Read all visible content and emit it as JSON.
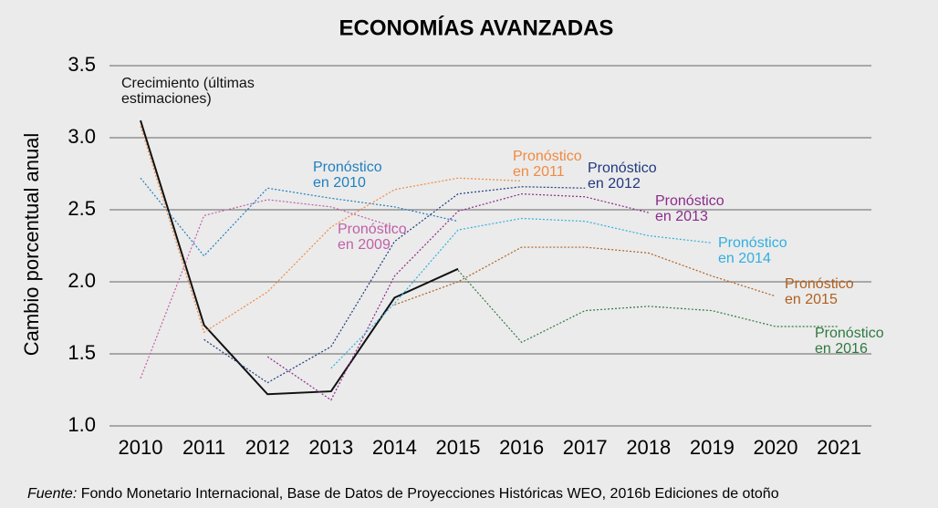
{
  "chart_data": {
    "type": "line",
    "title": "ECONOMÍAS AVANZADAS",
    "y_label": "Cambio porcentual anual",
    "source_label": "Fuente:",
    "source_text": "Fondo Monetario Internacional, Base de Datos de Proyecciones Históricas WEO, 2016b Ediciones de otoño",
    "categories": [
      "2010",
      "2011",
      "2012",
      "2013",
      "2014",
      "2015",
      "2016",
      "2017",
      "2018",
      "2019",
      "2020",
      "2021"
    ],
    "ylim": [
      1.0,
      3.5
    ],
    "yticks": [
      {
        "value": 1,
        "label": "1.0"
      },
      1.5,
      {
        "value": 2,
        "label": "2.0"
      },
      2.5,
      {
        "value": 3,
        "label": "3.0"
      },
      3.5
    ],
    "grid": true,
    "series": [
      {
        "name": "Crecimiento (últimas estimaciones)",
        "color": "#111111",
        "style": "solid",
        "values": [
          3.12,
          1.7,
          1.22,
          1.24,
          1.89,
          2.09,
          null,
          null,
          null,
          null,
          null,
          null
        ]
      },
      {
        "name": "Pronóstico en 2009",
        "color": "#c060a8",
        "style": "dotted",
        "values": [
          1.33,
          2.46,
          2.57,
          2.52,
          2.38,
          null,
          null,
          null,
          null,
          null,
          null,
          null
        ]
      },
      {
        "name": "Pronóstico en 2010",
        "color": "#1f7fc0",
        "style": "dotted",
        "values": [
          2.72,
          2.18,
          2.65,
          2.58,
          2.52,
          2.42,
          null,
          null,
          null,
          null,
          null,
          null
        ]
      },
      {
        "name": "Pronóstico en 2011",
        "color": "#f08a40",
        "style": "dotted",
        "values": [
          3.08,
          1.65,
          1.93,
          2.38,
          2.64,
          2.72,
          2.7,
          null,
          null,
          null,
          null,
          null
        ]
      },
      {
        "name": "Pronóstico en 2012",
        "color": "#1f3a80",
        "style": "dotted",
        "values": [
          null,
          1.6,
          1.3,
          1.55,
          2.28,
          2.61,
          2.66,
          2.65,
          null,
          null,
          null,
          null
        ]
      },
      {
        "name": "Pronóstico en 2013",
        "color": "#8b2b8b",
        "style": "dotted",
        "values": [
          null,
          null,
          1.48,
          1.18,
          2.04,
          2.49,
          2.61,
          2.59,
          2.48,
          null,
          null,
          null
        ]
      },
      {
        "name": "Pronóstico en 2014",
        "color": "#30b0e0",
        "style": "dotted",
        "values": [
          null,
          null,
          null,
          1.4,
          1.85,
          2.36,
          2.44,
          2.42,
          2.32,
          2.27,
          null,
          null
        ]
      },
      {
        "name": "Pronóstico en 2015",
        "color": "#b06020",
        "style": "dotted",
        "values": [
          null,
          null,
          null,
          null,
          1.84,
          2.0,
          2.24,
          2.24,
          2.2,
          2.04,
          1.9,
          null
        ]
      },
      {
        "name": "Pronóstico en 2016",
        "color": "#2e7a40",
        "style": "dotted",
        "values": [
          null,
          null,
          null,
          null,
          null,
          2.08,
          1.58,
          1.8,
          1.83,
          1.8,
          1.69,
          1.69
        ]
      }
    ]
  }
}
